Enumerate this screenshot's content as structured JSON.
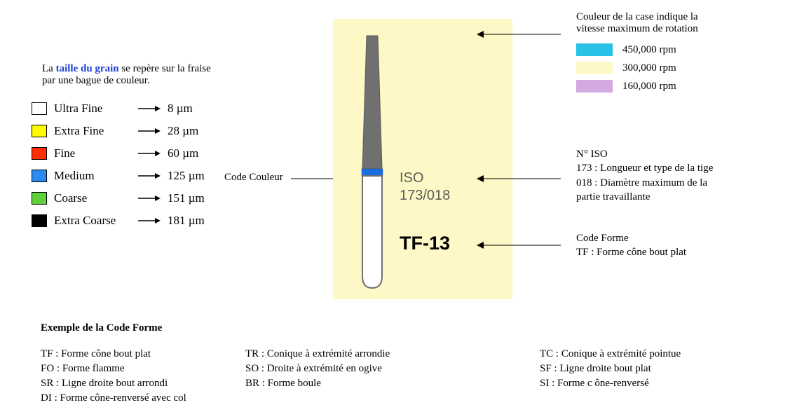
{
  "intro": {
    "prefix": "La ",
    "link": "taille du grain",
    "suffix": " se repère sur la fraise",
    "line2": "par une bague de couleur."
  },
  "grain_legend": {
    "items": [
      {
        "color": "#ffffff",
        "label": "Ultra Fine",
        "micron": "8 µm"
      },
      {
        "color": "#fffa00",
        "label": "Extra Fine",
        "micron": "28 µm"
      },
      {
        "color": "#ff2d00",
        "label": "Fine",
        "micron": "60 µm"
      },
      {
        "color": "#2a8cf0",
        "label": "Medium",
        "micron": "125 µm"
      },
      {
        "color": "#5fd23b",
        "label": "Coarse",
        "micron": "151 µm"
      },
      {
        "color": "#000000",
        "label": "Extra Coarse",
        "micron": "181 µm"
      }
    ]
  },
  "code_couleur_label": "Code Couleur",
  "center_box": {
    "bg": "#fdf8c5",
    "iso_line1": "ISO",
    "iso_line2": "173/018",
    "code": "TF-13",
    "bur": {
      "head_fill": "#707070",
      "band_fill": "#1a6fe0",
      "shank_fill": "#ffffff",
      "stroke": "#707070"
    }
  },
  "speed": {
    "title1": "Couleur de la case indique la",
    "title2": "vitesse maximum de rotation",
    "rows": [
      {
        "color": "#29c2e6",
        "label": "450,000 rpm"
      },
      {
        "color": "#fdf8c5",
        "label": "300,000 rpm"
      },
      {
        "color": "#d4a8e0",
        "label": "160,000 rpm"
      }
    ]
  },
  "iso_explain": {
    "title": "N° ISO",
    "line1": "173 : Longueur et type de la tige",
    "line2": "018 : Diamètre maximum de la",
    "line3": "partie travaillante"
  },
  "codeforme_explain": {
    "title": "Code Forme",
    "line1": "TF : Forme cône bout plat"
  },
  "example": {
    "title": "Exemple de la Code Forme",
    "col1": [
      "TF : Forme cône bout plat",
      "FO : Forme flamme",
      "SR : Ligne droite bout arrondi",
      "DI :  Forme cône-renversé avec col"
    ],
    "col2": [
      "TR : Conique à extrémité arrondie",
      " SO : Droite à extrémité en ogive",
      "BR : Forme boule"
    ],
    "col3": [
      "TC :  Conique à extrémité pointue",
      "SF :  Ligne droite bout plat",
      "SI  :  Forme c ône-renversé"
    ]
  },
  "colors": {
    "link": "#1d3fd4",
    "text": "#000000",
    "iso_text": "#5c5c5c"
  }
}
